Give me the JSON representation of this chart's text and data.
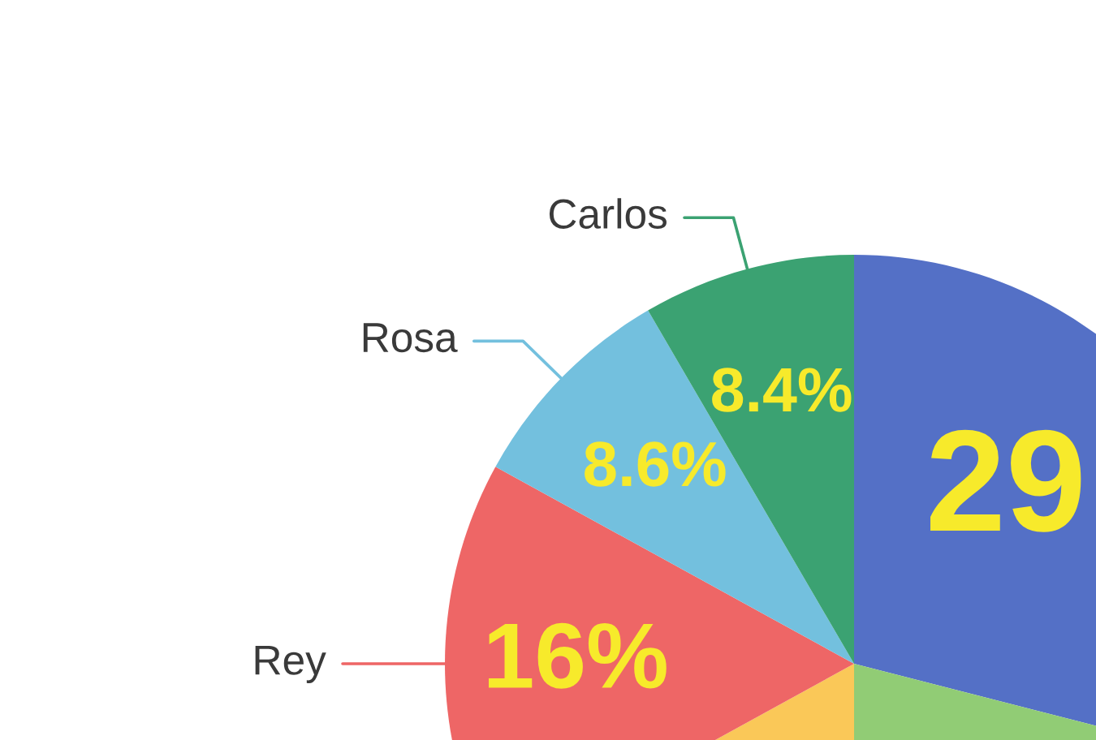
{
  "chart_data": {
    "type": "pie",
    "categories": [
      null,
      null,
      null,
      "Rey",
      "Rosa",
      "Carlos"
    ],
    "values": [
      29,
      21,
      17,
      16,
      8.6,
      8.4
    ],
    "colors": [
      "#5470c6",
      "#91cc75",
      "#fac858",
      "#ee6666",
      "#73c0de",
      "#3ba272"
    ],
    "value_labels": [
      "29",
      null,
      null,
      "16%",
      "8.6%",
      "8.4%"
    ]
  }
}
